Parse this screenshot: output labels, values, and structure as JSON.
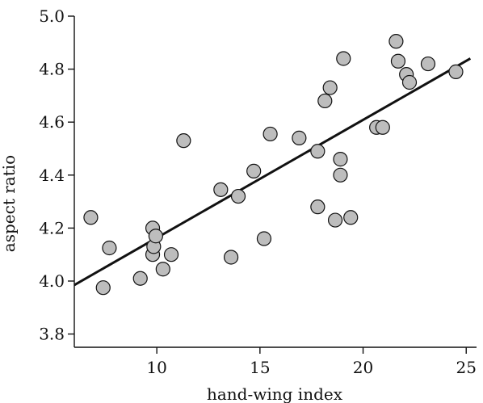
{
  "chart_data": {
    "type": "scatter",
    "xlabel": "hand-wing index",
    "ylabel": "aspect ratio",
    "xlim": [
      6,
      25.5
    ],
    "ylim": [
      3.75,
      5.0
    ],
    "xticks": [
      10,
      15,
      20,
      25
    ],
    "yticks": [
      3.8,
      4.0,
      4.2,
      4.4,
      4.6,
      4.8,
      5.0
    ],
    "xtick_labels": [
      "10",
      "15",
      "20",
      "25"
    ],
    "ytick_labels": [
      "3.8",
      "4.0",
      "4.2",
      "4.4",
      "4.6",
      "4.8",
      "5.0"
    ],
    "grid": false,
    "legend": "none",
    "marker_color": "#bdbdbd",
    "points": [
      {
        "x": 6.8,
        "y": 4.24
      },
      {
        "x": 7.4,
        "y": 3.975
      },
      {
        "x": 7.7,
        "y": 4.125
      },
      {
        "x": 9.2,
        "y": 4.01
      },
      {
        "x": 9.8,
        "y": 4.2
      },
      {
        "x": 9.8,
        "y": 4.1
      },
      {
        "x": 9.85,
        "y": 4.13
      },
      {
        "x": 9.95,
        "y": 4.17
      },
      {
        "x": 10.3,
        "y": 4.045
      },
      {
        "x": 10.7,
        "y": 4.1
      },
      {
        "x": 11.3,
        "y": 4.53
      },
      {
        "x": 13.1,
        "y": 4.345
      },
      {
        "x": 13.6,
        "y": 4.09
      },
      {
        "x": 13.95,
        "y": 4.32
      },
      {
        "x": 14.7,
        "y": 4.415
      },
      {
        "x": 15.2,
        "y": 4.16
      },
      {
        "x": 15.5,
        "y": 4.555
      },
      {
        "x": 16.9,
        "y": 4.54
      },
      {
        "x": 17.8,
        "y": 4.49
      },
      {
        "x": 17.8,
        "y": 4.28
      },
      {
        "x": 18.15,
        "y": 4.68
      },
      {
        "x": 18.4,
        "y": 4.73
      },
      {
        "x": 18.65,
        "y": 4.23
      },
      {
        "x": 18.9,
        "y": 4.46
      },
      {
        "x": 18.9,
        "y": 4.4
      },
      {
        "x": 19.05,
        "y": 4.84
      },
      {
        "x": 19.4,
        "y": 4.24
      },
      {
        "x": 20.65,
        "y": 4.58
      },
      {
        "x": 20.95,
        "y": 4.58
      },
      {
        "x": 21.6,
        "y": 4.905
      },
      {
        "x": 21.7,
        "y": 4.83
      },
      {
        "x": 22.1,
        "y": 4.78
      },
      {
        "x": 22.25,
        "y": 4.75
      },
      {
        "x": 23.15,
        "y": 4.82
      },
      {
        "x": 24.5,
        "y": 4.79
      }
    ],
    "regression_line": {
      "x": [
        6,
        25.2
      ],
      "y": [
        3.985,
        4.84
      ]
    }
  }
}
